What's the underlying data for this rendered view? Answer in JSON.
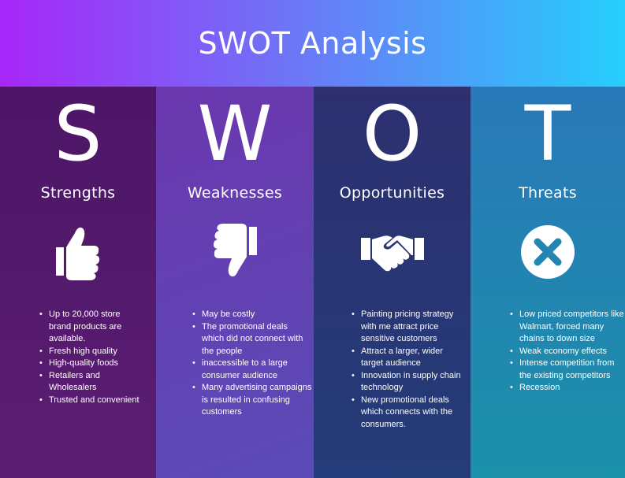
{
  "header": {
    "title": "SWOT Analysis"
  },
  "columns": [
    {
      "letter": "S",
      "title": "Strengths",
      "icon": "thumbs-up-icon",
      "points": [
        "Up to 20,000 store brand products are available.",
        "Fresh high quality",
        "High-quality foods",
        "Retailers and Wholesalers",
        "Trusted and convenient"
      ]
    },
    {
      "letter": "W",
      "title": "Weaknesses",
      "icon": "thumbs-down-icon",
      "points": [
        "May be costly",
        "The promotional deals which did not connect with the people",
        "inaccessible to a large consumer audience",
        "Many advertising campaigns is resulted in confusing customers"
      ]
    },
    {
      "letter": "O",
      "title": "Opportunities",
      "icon": "handshake-icon",
      "points": [
        "Painting pricing strategy with me attract price sensitive customers",
        "Attract a larger, wider target audience",
        "Innovation in supply chain technology",
        "New promotional deals which connects with the consumers."
      ]
    },
    {
      "letter": "T",
      "title": "Threats",
      "icon": "x-circle-icon",
      "points": [
        "Low priced competitors like Walmart, forced many chains to down size",
        "Weak economy effects",
        "Intense competition from the existing competitors",
        "Recession"
      ]
    }
  ],
  "colors": {
    "header_start": "#a726f8",
    "header_end": "#25cffc",
    "strengths_bg": "#4d1666",
    "weaknesses_bg": "#6a37ad",
    "opportunities_bg": "#2d2f6f",
    "threats_bg": "#2978b8"
  }
}
